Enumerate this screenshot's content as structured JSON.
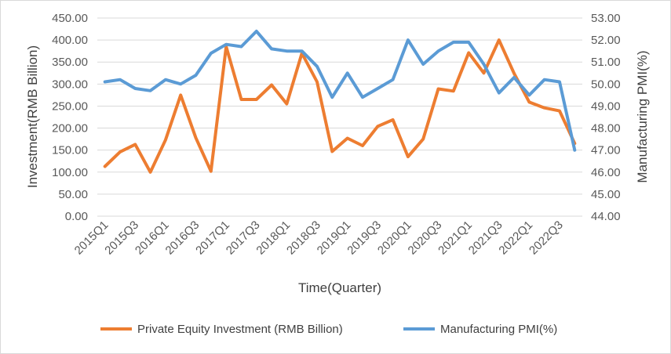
{
  "chart_data": {
    "type": "line",
    "title": "",
    "xlabel": "Time(Quarter)",
    "ylabel_left": "Investment(RMB Billion)",
    "ylabel_right": "Manufacturing PMI(%)",
    "ylim_left": [
      0,
      450
    ],
    "ylim_right": [
      44,
      53
    ],
    "yticks_left": [
      "0.00",
      "50.00",
      "100.00",
      "150.00",
      "200.00",
      "250.00",
      "300.00",
      "350.00",
      "400.00",
      "450.00"
    ],
    "yticks_right": [
      "44.00",
      "45.00",
      "46.00",
      "47.00",
      "48.00",
      "49.00",
      "50.00",
      "51.00",
      "52.00",
      "53.00"
    ],
    "x": [
      "2015Q1",
      "2015Q2",
      "2015Q3",
      "2015Q4",
      "2016Q1",
      "2016Q2",
      "2016Q3",
      "2016Q4",
      "2017Q1",
      "2017Q2",
      "2017Q3",
      "2017Q4",
      "2018Q1",
      "2018Q2",
      "2018Q3",
      "2018Q4",
      "2019Q1",
      "2019Q2",
      "2019Q3",
      "2019Q4",
      "2020Q1",
      "2020Q2",
      "2020Q3",
      "2020Q4",
      "2021Q1",
      "2021Q2",
      "2021Q3",
      "2021Q4",
      "2022Q1",
      "2022Q2",
      "2022Q3",
      "2022Q4"
    ],
    "x_tick_labels": [
      "2015Q1",
      "2015Q3",
      "2016Q1",
      "2016Q3",
      "2017Q1",
      "2017Q3",
      "2018Q1",
      "2018Q3",
      "2019Q1",
      "2019Q3",
      "2020Q1",
      "2020Q3",
      "2021Q1",
      "2021Q3",
      "2022Q1",
      "2022Q3"
    ],
    "series": [
      {
        "name": "Private Equity Investment (RMB Billion)",
        "axis": "left",
        "color": "#ED7D31",
        "values": [
          113,
          146,
          163,
          100,
          173,
          275,
          178,
          102,
          385,
          265,
          265,
          298,
          255,
          370,
          305,
          147,
          177,
          160,
          204,
          219,
          135,
          175,
          289,
          284,
          371,
          325,
          400,
          324,
          259,
          246,
          239,
          165
        ]
      },
      {
        "name": "Manufacturing PMI(%)",
        "axis": "right",
        "color": "#5B9BD5",
        "values": [
          50.1,
          50.2,
          49.8,
          49.7,
          50.2,
          50.0,
          50.4,
          51.4,
          51.8,
          51.7,
          52.4,
          51.6,
          51.5,
          51.5,
          50.8,
          49.4,
          50.5,
          49.4,
          49.8,
          50.2,
          52.0,
          50.9,
          51.5,
          51.9,
          51.9,
          50.9,
          49.6,
          50.3,
          49.5,
          50.2,
          50.1,
          47.0
        ]
      }
    ],
    "legend_position": "bottom"
  }
}
